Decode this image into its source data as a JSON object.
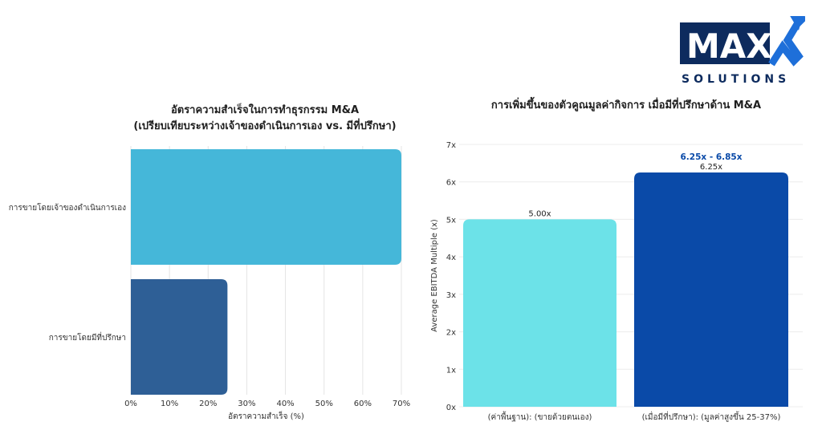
{
  "logo": {
    "wordmark": "MAX",
    "subtitle": "SOLUTIONS",
    "colors": {
      "navy": "#0d2b5e",
      "blue": "#1e6fd9"
    }
  },
  "chart_data": [
    {
      "type": "bar",
      "orientation": "horizontal",
      "title_line1": "อัตราความสำเร็จในการทำธุรกรรม M&A",
      "title_line2": "(เปรียบเทียบระหว่างเจ้าของดำเนินการเอง vs. มีที่ปรึกษา)",
      "categories": [
        "การขายโดยเจ้าของดำเนินการเอง",
        "การขายโดยมีที่ปรึกษา"
      ],
      "values": [
        70,
        25
      ],
      "colors": [
        "#45b7d9",
        "#2e5f96"
      ],
      "xlabel": "อัตราความสำเร็จ (%)",
      "xlim": [
        0,
        70
      ],
      "xticks": [
        "0%",
        "10%",
        "20%",
        "30%",
        "40%",
        "50%",
        "60%",
        "70%"
      ],
      "grid": "vertical"
    },
    {
      "type": "bar",
      "orientation": "vertical",
      "title": "การเพิ่มขึ้นของตัวคูณมูลค่ากิจการ เมื่อมีที่ปรึกษาด้าน M&A",
      "categories": [
        "(ค่าพื้นฐาน): (ขายด้วยตนเอง)",
        "(เมื่อมีที่ปรึกษา): (มูลค่าสูงขึ้น 25-37%)"
      ],
      "values": [
        5.0,
        6.25
      ],
      "value_labels": [
        "5.00x",
        "6.25x"
      ],
      "range_annotation": "6.25x - 6.85x",
      "colors": [
        "#6ce2e8",
        "#0a4aa8"
      ],
      "annotation_color": "#0a4aa8",
      "ylabel": "Average EBITDA Multiple (x)",
      "ylim": [
        0,
        7
      ],
      "yticks": [
        "0x",
        "1x",
        "2x",
        "3x",
        "4x",
        "5x",
        "6x",
        "7x"
      ],
      "grid": "horizontal"
    }
  ]
}
